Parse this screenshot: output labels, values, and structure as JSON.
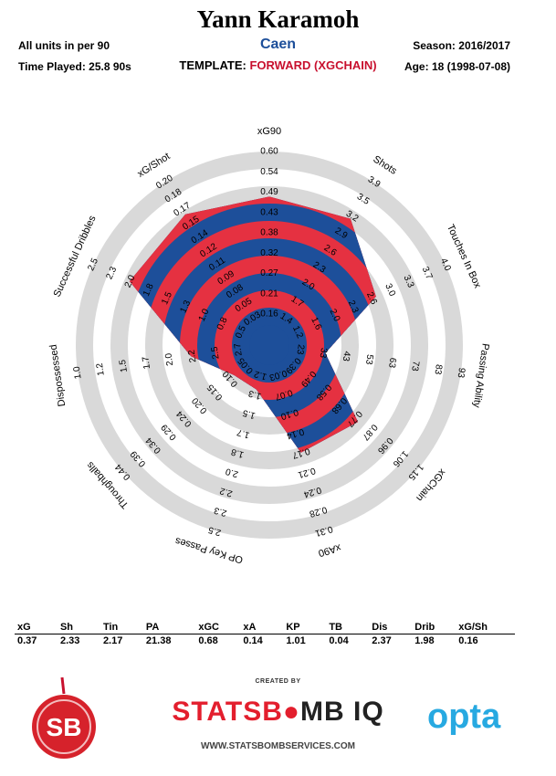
{
  "header": {
    "player_name": "Yann Karamoh",
    "team": "Caen",
    "units_note": "All units in per 90",
    "time_played": "Time Played: 25.8 90s",
    "template_label": "TEMPLATE:",
    "template_name": "FORWARD (XGCHAIN)",
    "season": "Season: 2016/2017",
    "age": "Age: 18 (1998-07-08)"
  },
  "colors": {
    "team_blue": "#1d4f9a",
    "accent_red": "#e53141",
    "ring_grey": "#d9d9d9",
    "template_red": "#c8102e",
    "opta_blue": "#27a9e1"
  },
  "chart_data": {
    "type": "radar",
    "title": "",
    "rings": 5,
    "axes": [
      {
        "name": "xG90",
        "ticks": [
          "0.16",
          "0.21",
          "0.27",
          "0.32",
          "0.38",
          "0.43",
          "0.49",
          "0.54",
          "0.60"
        ],
        "value": 0.37,
        "fraction": 0.74
      },
      {
        "name": "Shots",
        "ticks": [
          "1.4",
          "1.7",
          "2.0",
          "2.3",
          "2.6",
          "2.9",
          "3.2",
          "3.5",
          "3.9"
        ],
        "value": 2.33,
        "fraction": 0.75
      },
      {
        "name": "Touches In Box",
        "ticks": [
          "1.2",
          "1.6",
          "2.0",
          "2.3",
          "2.6",
          "3.0",
          "3.3",
          "3.7",
          "4.0"
        ],
        "value": 2.17,
        "fraction": 0.56
      },
      {
        "name": "Passing Ability",
        "ticks": [
          "23",
          "33",
          "43",
          "53",
          "63",
          "73",
          "83",
          "93"
        ],
        "value": 21.38,
        "fraction": 0.21
      },
      {
        "name": "xGChain",
        "ticks": [
          "0.39",
          "0.49",
          "0.58",
          "0.68",
          "0.77",
          "0.87",
          "0.96",
          "1.06",
          "1.15"
        ],
        "value": 0.68,
        "fraction": 0.56
      },
      {
        "name": "xA90",
        "ticks": [
          "0.03",
          "0.07",
          "0.10",
          "0.14",
          "0.17",
          "0.21",
          "0.24",
          "0.28",
          "0.31"
        ],
        "value": 0.14,
        "fraction": 0.53
      },
      {
        "name": "OP Key Passes",
        "ticks": [
          "1.2",
          "1.3",
          "1.5",
          "1.7",
          "1.8",
          "2.0",
          "2.2",
          "2.3",
          "2.5"
        ],
        "value": 1.01,
        "fraction": 0.15
      },
      {
        "name": "Throughballs",
        "ticks": [
          "0.05",
          "0.10",
          "0.15",
          "0.20",
          "0.24",
          "0.29",
          "0.34",
          "0.39",
          "0.44"
        ],
        "value": 0.04,
        "fraction": 0.15
      },
      {
        "name": "Dispossessed",
        "ticks": [
          "2.7",
          "2.5",
          "2.2",
          "2.0",
          "1.7",
          "1.5",
          "1.2",
          "1.0"
        ],
        "value": 2.37,
        "fraction": 0.34
      },
      {
        "name": "Successful Dribbles",
        "ticks": [
          "0.5",
          "0.8",
          "1.0",
          "1.3",
          "1.5",
          "1.8",
          "2.0",
          "2.3",
          "2.5"
        ],
        "value": 1.98,
        "fraction": 0.77
      },
      {
        "name": "xG/Shot",
        "ticks": [
          "0.03",
          "0.05",
          "0.08",
          "0.09",
          "0.11",
          "0.12",
          "0.14",
          "0.15",
          "0.17",
          "0.18",
          "0.20"
        ],
        "value": 0.16,
        "fraction": 0.78
      }
    ]
  },
  "summary": {
    "headers": [
      "xG",
      "Sh",
      "Tin",
      "PA",
      "xGC",
      "xA",
      "KP",
      "TB",
      "Dis",
      "Drib",
      "xG/Sh"
    ],
    "values": [
      "0.37",
      "2.33",
      "2.17",
      "21.38",
      "0.68",
      "0.14",
      "1.01",
      "0.04",
      "2.37",
      "1.98",
      "0.16"
    ]
  },
  "footer": {
    "created_by": "CREATED BY",
    "brand_part1": "STATSB",
    "brand_part2": "MB IQ",
    "website": "WWW.STATSBOMBSERVICES.COM",
    "sb_logo_text": "SB",
    "opta_logo_text": "opta"
  }
}
